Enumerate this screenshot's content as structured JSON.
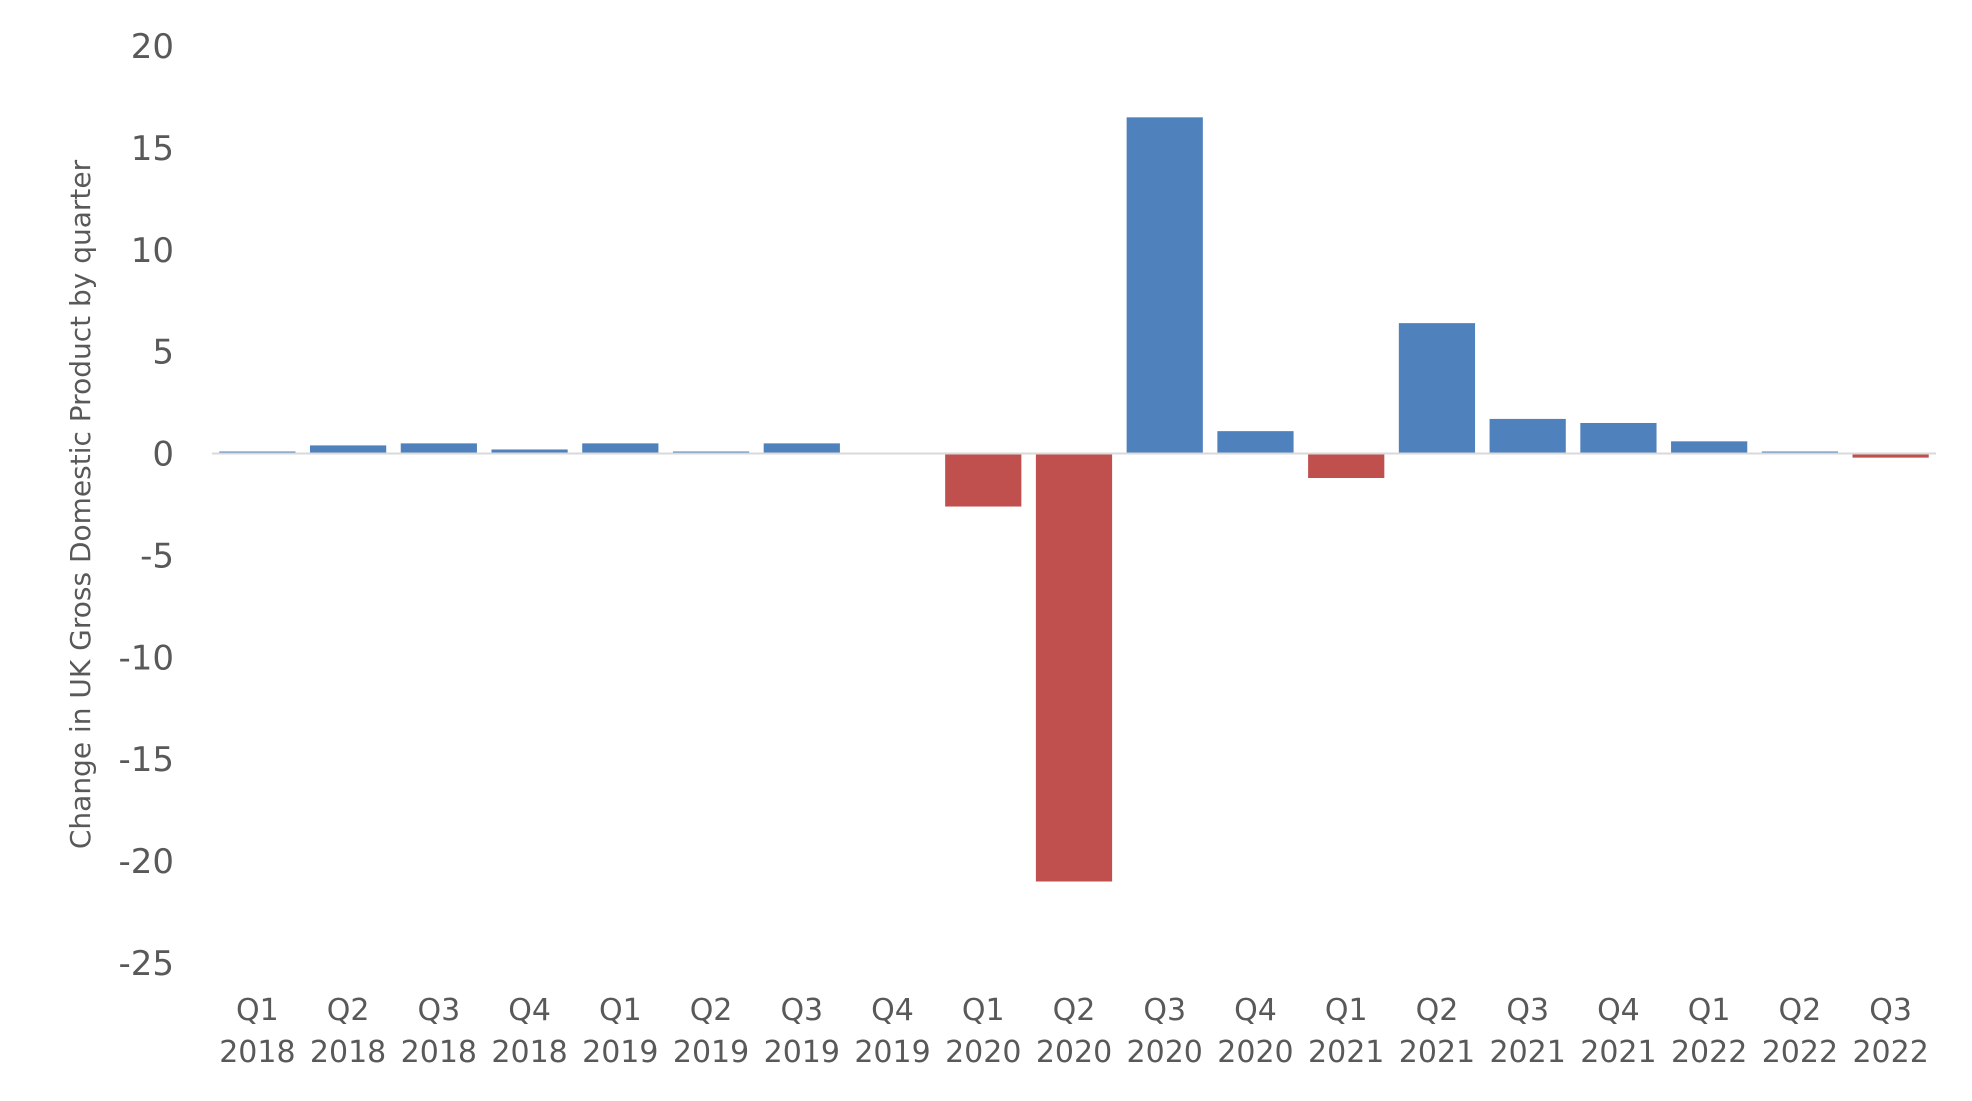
{
  "chart_data": {
    "type": "bar",
    "ylabel": "Change in UK Gross Domestic Product by quarter",
    "xlabel": "",
    "ylim": [
      -25,
      20
    ],
    "yticks": [
      20,
      15,
      10,
      5,
      0,
      -5,
      -10,
      -15,
      -20,
      -25
    ],
    "grid": false,
    "legend": "none",
    "positive_color": "#4F81BD",
    "negative_color": "#C0504D",
    "categories": [
      {
        "quarter": "Q1",
        "year": "2018"
      },
      {
        "quarter": "Q2",
        "year": "2018"
      },
      {
        "quarter": "Q3",
        "year": "2018"
      },
      {
        "quarter": "Q4",
        "year": "2018"
      },
      {
        "quarter": "Q1",
        "year": "2019"
      },
      {
        "quarter": "Q2",
        "year": "2019"
      },
      {
        "quarter": "Q3",
        "year": "2019"
      },
      {
        "quarter": "Q4",
        "year": "2019"
      },
      {
        "quarter": "Q1",
        "year": "2020"
      },
      {
        "quarter": "Q2",
        "year": "2020"
      },
      {
        "quarter": "Q3",
        "year": "2020"
      },
      {
        "quarter": "Q4",
        "year": "2020"
      },
      {
        "quarter": "Q1",
        "year": "2021"
      },
      {
        "quarter": "Q2",
        "year": "2021"
      },
      {
        "quarter": "Q3",
        "year": "2021"
      },
      {
        "quarter": "Q4",
        "year": "2021"
      },
      {
        "quarter": "Q1",
        "year": "2022"
      },
      {
        "quarter": "Q2",
        "year": "2022"
      },
      {
        "quarter": "Q3",
        "year": "2022"
      }
    ],
    "values": [
      0.1,
      0.4,
      0.5,
      0.2,
      0.5,
      0.1,
      0.5,
      0.0,
      -2.6,
      -21.0,
      16.5,
      1.1,
      -1.2,
      6.4,
      1.7,
      1.5,
      0.6,
      0.1,
      -0.2
    ]
  }
}
